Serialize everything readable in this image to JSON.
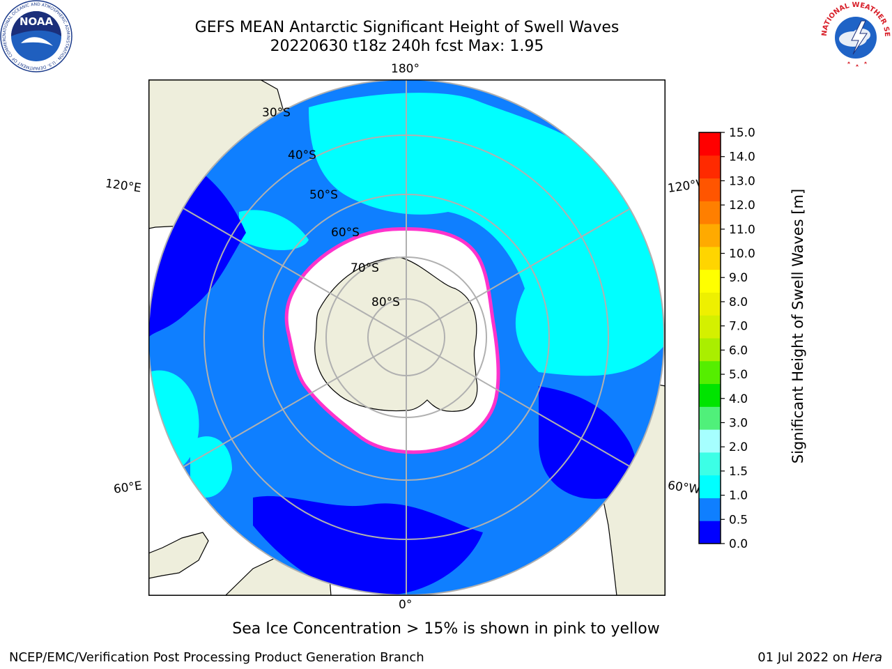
{
  "header": {
    "title_line1": "GEFS MEAN Antarctic Significant Height of Swell Waves",
    "title_line2": "20220630 t18z 240h fcst   Max: 1.95"
  },
  "logos": {
    "noaa_text": "NOAA",
    "noaa_ring_text": "NATIONAL OCEANIC AND ATMOSPHERIC ADMINISTRATION · U.S. DEPARTMENT OF COMMERCE",
    "nws_ring_text": "NATIONAL WEATHER SERVICE"
  },
  "map": {
    "projection": "south-polar-stereographic",
    "longitude_labels": {
      "top": "180°",
      "bottom": "0°",
      "upper_left": "120°E",
      "upper_right": "120°W",
      "lower_left": "60°E",
      "lower_right": "60°W"
    },
    "latitude_labels": [
      "30°S",
      "40°S",
      "50°S",
      "60°S",
      "70°S",
      "80°S"
    ],
    "colors": {
      "ocean_deep_blue": "#0000ff",
      "ocean_blue": "#0f7fff",
      "ocean_cyan": "#00ffff",
      "land": "#eeeedc",
      "ice": "#ffffff",
      "ice_edge": "#ff33cc",
      "gridline": "#b0b0b0"
    }
  },
  "colorbar": {
    "ticks": [
      "15.0",
      "14.0",
      "13.0",
      "12.0",
      "11.0",
      "10.0",
      "9.0",
      "8.0",
      "7.0",
      "6.0",
      "5.0",
      "4.0",
      "3.0",
      "2.0",
      "1.5",
      "1.0",
      "0.5",
      "0.0"
    ],
    "colors_bottom_to_top": [
      "#0000ff",
      "#0f7fff",
      "#00ffff",
      "#3cffe6",
      "#a6ffff",
      "#50f07a",
      "#00e400",
      "#55ee00",
      "#aaee00",
      "#d4f000",
      "#eef000",
      "#ffff00",
      "#ffd500",
      "#ffaa00",
      "#ff7f00",
      "#ff5500",
      "#ff2a00",
      "#ff0000"
    ],
    "label": "Significant Height of Swell Waves [m]"
  },
  "notes": {
    "ice_note": "Sea Ice Concentration > 15% is shown in pink to yellow"
  },
  "footer": {
    "left": "NCEP/EMC/Verification Post Processing Product Generation Branch",
    "right_date": "01 Jul 2022 on ",
    "right_host": "Hera"
  }
}
